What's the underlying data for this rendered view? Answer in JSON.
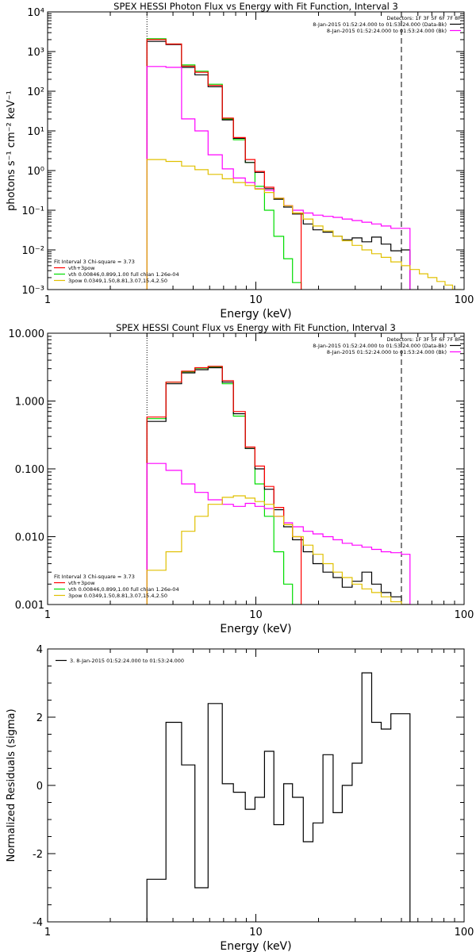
{
  "chart_data": [
    {
      "type": "line",
      "title": "SPEX HESSI Photon Flux vs Energy with Fit Function, Interval 3",
      "xlabel": "Energy (keV)",
      "ylabel": "photons s⁻¹ cm⁻² keV⁻¹",
      "xscale": "log",
      "yscale": "log",
      "xlim": [
        1,
        100
      ],
      "ylim": [
        0.001,
        10000
      ],
      "x_ticks": [
        "1",
        "10",
        "100"
      ],
      "y_ticks": [
        "10⁻³",
        "10⁻²",
        "10⁻¹",
        "10⁰",
        "10¹",
        "10²",
        "10³",
        "10⁴"
      ],
      "vlines": [
        {
          "x": 3,
          "style": "dotted"
        },
        {
          "x": 50,
          "style": "dashed"
        }
      ],
      "legend_top": {
        "header": "Detectors: 1F 3F 5F 6F 7F 8F",
        "entries": [
          {
            "text": "8-Jan-2015 01:52:24.000 to 01:53:24.000 (Data-Bk)",
            "color": "#000000"
          },
          {
            "text": "8-Jan-2015 01:52:24.000 to 01:53:24.000 (Bk)",
            "color": "#ff00ff"
          }
        ]
      },
      "legend_bottom": {
        "header": "Fit Interval 3   Chi-square = 3.73",
        "entries": [
          {
            "text": "vth+3pow",
            "color": "#ff0000"
          },
          {
            "text": "vth 0.00846,0.899,1.00   full chian 1.26e-04",
            "color": "#00dd00"
          },
          {
            "text": "3pow 0.0349,1.50,8.81,3.07,15.4,2.50",
            "color": "#e0c000"
          }
        ]
      },
      "series": [
        {
          "color": "#00dd00",
          "x": [
            3.0,
            3.7,
            4.4,
            5.1,
            5.9,
            6.9,
            7.8,
            8.9,
            9.9,
            11.0,
            12.2,
            13.6,
            15.0
          ],
          "y": [
            2100,
            1550,
            460,
            320,
            150,
            20,
            6,
            1.6,
            0.4,
            0.1,
            0.022,
            0.006,
            0.0015
          ]
        },
        {
          "color": "#000000",
          "x": [
            3.0,
            3.7,
            4.4,
            5.1,
            5.9,
            6.9,
            7.8,
            8.9,
            9.9,
            11.0,
            12.2,
            13.6,
            15.0,
            16.9,
            18.8,
            21.0,
            23.5,
            26.0,
            29.0,
            32.3,
            36.0,
            40.0,
            44.5,
            50.0
          ],
          "y": [
            1800,
            1500,
            400,
            260,
            130,
            19,
            6.5,
            1.6,
            0.9,
            0.35,
            0.19,
            0.12,
            0.08,
            0.045,
            0.032,
            0.028,
            0.022,
            0.018,
            0.02,
            0.016,
            0.021,
            0.014,
            0.0095,
            0.01
          ]
        },
        {
          "color": "#ff0000",
          "x": [
            3.0,
            3.7,
            4.4,
            5.1,
            5.9,
            6.9,
            7.8,
            8.9,
            9.9,
            11.0,
            12.2,
            13.6,
            15.0
          ],
          "y": [
            2000,
            1550,
            430,
            300,
            140,
            21,
            6.8,
            1.9,
            0.95,
            0.38,
            0.2,
            0.13,
            0.085
          ]
        },
        {
          "color": "#ff00ff",
          "x": [
            3.0,
            3.7,
            4.4,
            5.1,
            5.9,
            6.9,
            7.8,
            8.9,
            9.9,
            11.0,
            12.2,
            13.6,
            15.0,
            16.9,
            18.8,
            21.0,
            23.5,
            26.0,
            29.0,
            32.3,
            36.0,
            40.0,
            44.5,
            50.0
          ],
          "y": [
            420,
            400,
            20,
            10,
            2.5,
            1.1,
            0.65,
            0.5,
            0.35,
            0.32,
            0.2,
            0.13,
            0.1,
            0.085,
            0.075,
            0.07,
            0.066,
            0.06,
            0.055,
            0.05,
            0.045,
            0.04,
            0.035,
            0.035
          ]
        },
        {
          "color": "#e0c000",
          "x": [
            3.0,
            3.7,
            4.4,
            5.1,
            5.9,
            6.9,
            7.8,
            8.9,
            9.9,
            11.0,
            12.2,
            13.6,
            15.0,
            16.9,
            18.8,
            21.0,
            23.5,
            26.0,
            29.0,
            32.3,
            36.0,
            40.0,
            44.5,
            50.0,
            55.0,
            61.0,
            67.0,
            74.0,
            81.0,
            88.0
          ],
          "y": [
            1.9,
            1.7,
            1.3,
            1.05,
            0.8,
            0.62,
            0.5,
            0.42,
            0.34,
            0.28,
            0.2,
            0.13,
            0.085,
            0.06,
            0.04,
            0.03,
            0.022,
            0.017,
            0.013,
            0.01,
            0.008,
            0.0065,
            0.005,
            0.004,
            0.0032,
            0.0025,
            0.002,
            0.0016,
            0.0013,
            0.001
          ]
        }
      ]
    },
    {
      "type": "line",
      "title": "SPEX HESSI Count Flux vs Energy with Fit Function, Interval 3",
      "xlabel": "Energy (keV)",
      "ylabel": "",
      "xscale": "log",
      "yscale": "log",
      "xlim": [
        1,
        100
      ],
      "ylim": [
        0.001,
        10
      ],
      "x_ticks": [
        "1",
        "10",
        "100"
      ],
      "y_ticks": [
        "0.001",
        "0.010",
        "0.100",
        "1.000",
        "10.000"
      ],
      "vlines": [
        {
          "x": 3,
          "style": "dotted"
        },
        {
          "x": 50,
          "style": "dashed"
        }
      ],
      "legend_top": {
        "header": "Detectors: 1F 3F 5F 6F 7F 8F",
        "entries": [
          {
            "text": "8-Jan-2015 01:52:24.000 to 01:53:24.000 (Data-Bk)",
            "color": "#000000"
          },
          {
            "text": "8-Jan-2015 01:52:24.000 to 01:53:24.000 (Bk)",
            "color": "#ff00ff"
          }
        ]
      },
      "legend_bottom": {
        "header": "Fit Interval 3   Chi-square = 3.73",
        "entries": [
          {
            "text": "vth+3pow",
            "color": "#ff0000"
          },
          {
            "text": "vth 0.00846,0.899,1.00   full chian 1.26e-04",
            "color": "#00dd00"
          },
          {
            "text": "3pow 0.0349,1.50,8.81,3.07,15.4,2.50",
            "color": "#e0c000"
          }
        ]
      },
      "series": [
        {
          "color": "#00dd00",
          "x": [
            3.0,
            3.7,
            4.4,
            5.1,
            5.9,
            6.9,
            7.8,
            8.9,
            9.9,
            11.0,
            12.2,
            13.6,
            15.0
          ],
          "y": [
            0.55,
            1.9,
            2.7,
            3.05,
            3.2,
            1.8,
            0.6,
            0.2,
            0.06,
            0.02,
            0.006,
            0.002,
            0.001
          ]
        },
        {
          "color": "#000000",
          "x": [
            3.0,
            3.7,
            4.4,
            5.1,
            5.9,
            6.9,
            7.8,
            8.9,
            9.9,
            11.0,
            12.2,
            13.6,
            15.0,
            16.9,
            18.8,
            21.0,
            23.5,
            26.0,
            29.0,
            32.3,
            36.0,
            40.0,
            44.5,
            50.0
          ],
          "y": [
            0.5,
            1.8,
            2.6,
            2.9,
            3.1,
            1.9,
            0.65,
            0.2,
            0.1,
            0.05,
            0.025,
            0.014,
            0.009,
            0.006,
            0.004,
            0.003,
            0.0025,
            0.0018,
            0.0022,
            0.003,
            0.002,
            0.0015,
            0.0013,
            0.001
          ]
        },
        {
          "color": "#ff0000",
          "x": [
            3.0,
            3.7,
            4.4,
            5.1,
            5.9,
            6.9,
            7.8,
            8.9,
            9.9,
            11.0,
            12.2,
            13.6,
            15.0
          ],
          "y": [
            0.58,
            1.9,
            2.75,
            3.1,
            3.25,
            2.0,
            0.7,
            0.21,
            0.11,
            0.055,
            0.027,
            0.015,
            0.01
          ]
        },
        {
          "color": "#ff00ff",
          "x": [
            3.0,
            3.7,
            4.4,
            5.1,
            5.9,
            6.9,
            7.8,
            8.9,
            9.9,
            11.0,
            12.2,
            13.6,
            15.0,
            16.9,
            18.8,
            21.0,
            23.5,
            26.0,
            29.0,
            32.3,
            36.0,
            40.0,
            44.5,
            50.0
          ],
          "y": [
            0.12,
            0.095,
            0.06,
            0.045,
            0.035,
            0.03,
            0.028,
            0.031,
            0.028,
            0.026,
            0.02,
            0.016,
            0.014,
            0.012,
            0.011,
            0.01,
            0.009,
            0.008,
            0.0075,
            0.007,
            0.0065,
            0.006,
            0.0058,
            0.0055
          ]
        },
        {
          "color": "#e0c000",
          "x": [
            3.0,
            3.7,
            4.4,
            5.1,
            5.9,
            6.9,
            7.8,
            8.9,
            9.9,
            11.0,
            12.2,
            13.6,
            15.0,
            16.9,
            18.8,
            21.0,
            23.5,
            26.0,
            29.0,
            32.3,
            36.0,
            40.0,
            44.5,
            50.0
          ],
          "y": [
            0.0032,
            0.006,
            0.012,
            0.02,
            0.03,
            0.038,
            0.04,
            0.037,
            0.033,
            0.03,
            0.02,
            0.015,
            0.01,
            0.0075,
            0.0055,
            0.004,
            0.003,
            0.0025,
            0.002,
            0.0017,
            0.0015,
            0.0013,
            0.0011,
            0.001
          ]
        }
      ]
    },
    {
      "type": "line",
      "title": "",
      "xlabel": "Energy (keV)",
      "ylabel": "Normalized Residuals (sigma)",
      "xscale": "log",
      "yscale": "linear",
      "xlim": [
        1,
        100
      ],
      "ylim": [
        -4,
        4
      ],
      "x_ticks": [
        "1",
        "10",
        "100"
      ],
      "y_ticks": [
        "-4",
        "-2",
        "0",
        "2",
        "4"
      ],
      "legend": {
        "text": "3.  8-Jan-2015 01:52:24.000 to 01:53:24.000",
        "color": "#000000"
      },
      "series": [
        {
          "color": "#000000",
          "x": [
            3.0,
            3.7,
            4.4,
            5.1,
            5.9,
            6.9,
            7.8,
            8.9,
            9.9,
            11.0,
            12.2,
            13.6,
            15.0,
            16.9,
            18.8,
            21.0,
            23.5,
            26.0,
            29.0,
            32.3,
            36.0,
            40.0,
            44.5,
            50.0
          ],
          "y": [
            -2.75,
            1.85,
            0.6,
            -3.0,
            2.4,
            0.05,
            -0.2,
            -0.7,
            -0.35,
            1.0,
            -1.15,
            0.05,
            -0.35,
            -1.65,
            -1.1,
            0.9,
            -0.8,
            0.0,
            0.65,
            3.3,
            1.85,
            1.65,
            2.1,
            2.1
          ]
        }
      ]
    }
  ]
}
